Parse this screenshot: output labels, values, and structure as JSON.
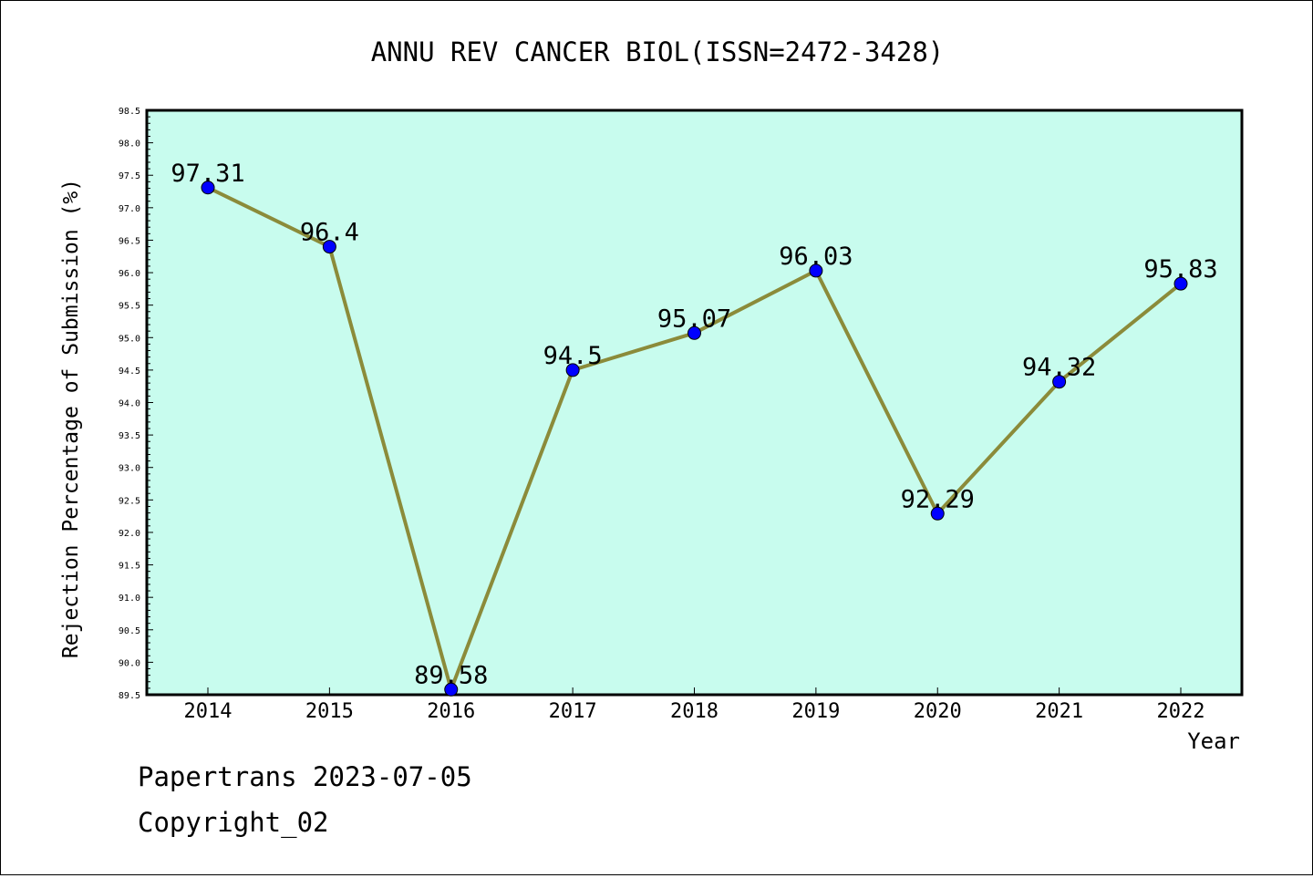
{
  "chart_data": {
    "type": "line",
    "title": "ANNU REV CANCER BIOL(ISSN=2472-3428)",
    "xlabel": "Year",
    "ylabel": "Rejection Percentage of Submission (%)",
    "categories": [
      "2014",
      "2015",
      "2016",
      "2017",
      "2018",
      "2019",
      "2020",
      "2021",
      "2022"
    ],
    "series": [
      {
        "values": [
          97.31,
          96.4,
          89.58,
          94.5,
          95.07,
          96.03,
          92.29,
          94.32,
          95.83
        ],
        "labels": [
          "97.31",
          "96.4",
          "89.58",
          "94.5",
          "95.07",
          "96.03",
          "92.29",
          "94.32",
          "95.83"
        ]
      }
    ],
    "ylim": [
      89.5,
      98.5
    ],
    "yticks": [
      "89.5",
      "90.0",
      "90.5",
      "91.0",
      "91.5",
      "92.0",
      "92.5",
      "93.0",
      "93.5",
      "94.0",
      "94.5",
      "95.0",
      "95.5",
      "96.0",
      "96.5",
      "97.0",
      "97.5",
      "98.0",
      "98.5"
    ],
    "grid": false,
    "colors": {
      "plot_background": "#c8fcee",
      "line": "#8b8b3a",
      "marker": "#0000ff"
    }
  },
  "footer": {
    "line1": "Papertrans 2023-07-05",
    "line2": "Copyright_02"
  }
}
